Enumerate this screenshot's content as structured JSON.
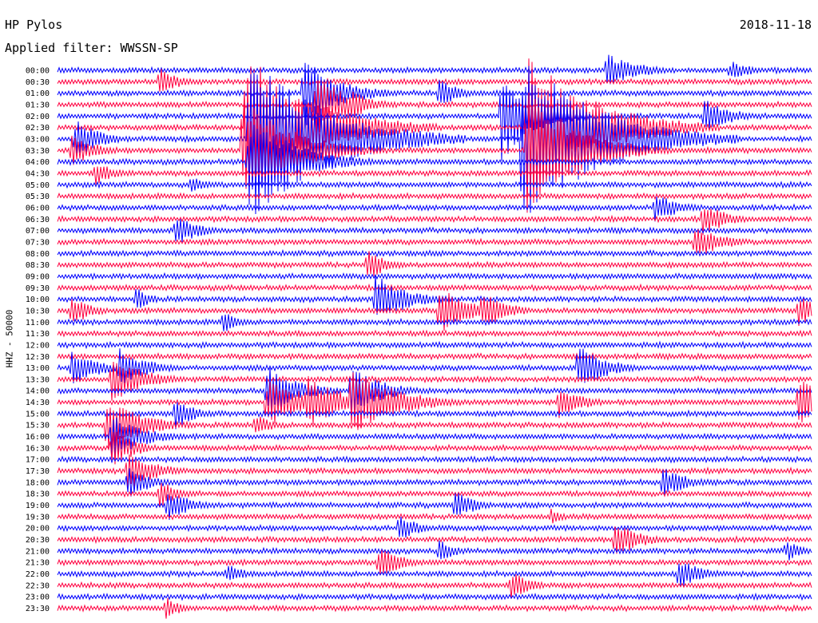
{
  "header": {
    "station": "HP Pylos",
    "filter": "Applied filter: WWSSN-SP",
    "date": "2018-11-18"
  },
  "chart_data": {
    "type": "line",
    "title": "HP Pylos",
    "subtitle": "Applied filter: WWSSN-SP",
    "ylabel": "HHZ - 50000",
    "xlabel": "",
    "colors": [
      "#0000ff",
      "#ff0040"
    ],
    "grid": false,
    "traces": [
      "00:00",
      "00:30",
      "01:00",
      "01:30",
      "02:00",
      "02:30",
      "03:00",
      "03:30",
      "04:00",
      "04:30",
      "05:00",
      "05:30",
      "06:00",
      "06:30",
      "07:00",
      "07:30",
      "08:00",
      "08:30",
      "09:00",
      "09:30",
      "10:00",
      "10:30",
      "11:00",
      "11:30",
      "12:00",
      "12:30",
      "13:00",
      "13:30",
      "14:00",
      "14:30",
      "15:00",
      "15:30",
      "16:00",
      "16:30",
      "17:00",
      "17:30",
      "18:00",
      "18:30",
      "19:00",
      "19:30",
      "20:00",
      "20:30",
      "21:00",
      "21:30",
      "22:00",
      "22:30",
      "23:00",
      "23:30"
    ]
  }
}
